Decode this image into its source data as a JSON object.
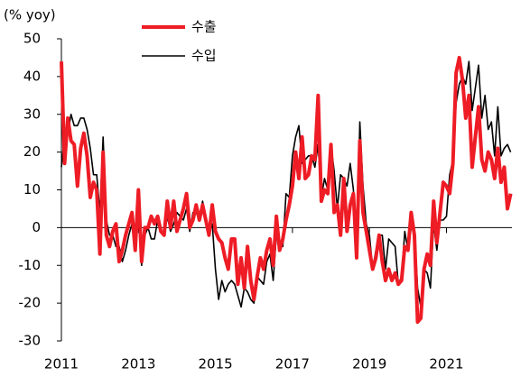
{
  "chart_data": {
    "type": "line",
    "y_label": "(% yoy)",
    "x": [
      2011,
      2011.083,
      2011.167,
      2011.25,
      2011.333,
      2011.417,
      2011.5,
      2011.583,
      2011.667,
      2011.75,
      2011.833,
      2011.917,
      2012,
      2012.083,
      2012.167,
      2012.25,
      2012.333,
      2012.417,
      2012.5,
      2012.583,
      2012.667,
      2012.75,
      2012.833,
      2012.917,
      2013,
      2013.083,
      2013.167,
      2013.25,
      2013.333,
      2013.417,
      2013.5,
      2013.583,
      2013.667,
      2013.75,
      2013.833,
      2013.917,
      2014,
      2014.083,
      2014.167,
      2014.25,
      2014.333,
      2014.417,
      2014.5,
      2014.583,
      2014.667,
      2014.75,
      2014.833,
      2014.917,
      2015,
      2015.083,
      2015.167,
      2015.25,
      2015.333,
      2015.417,
      2015.5,
      2015.583,
      2015.667,
      2015.75,
      2015.833,
      2015.917,
      2016,
      2016.083,
      2016.167,
      2016.25,
      2016.333,
      2016.417,
      2016.5,
      2016.583,
      2016.667,
      2016.75,
      2016.833,
      2016.917,
      2017,
      2017.083,
      2017.167,
      2017.25,
      2017.333,
      2017.417,
      2017.5,
      2017.583,
      2017.667,
      2017.75,
      2017.833,
      2017.917,
      2018,
      2018.083,
      2018.167,
      2018.25,
      2018.333,
      2018.417,
      2018.5,
      2018.583,
      2018.667,
      2018.75,
      2018.833,
      2018.917,
      2019,
      2019.083,
      2019.167,
      2019.25,
      2019.333,
      2019.417,
      2019.5,
      2019.583,
      2019.667,
      2019.75,
      2019.833,
      2019.917,
      2020,
      2020.083,
      2020.167,
      2020.25,
      2020.333,
      2020.417,
      2020.5,
      2020.583,
      2020.667,
      2020.75,
      2020.833,
      2020.917,
      2021,
      2021.083,
      2021.167,
      2021.25,
      2021.333,
      2021.417,
      2021.5,
      2021.583,
      2021.667,
      2021.75,
      2021.833,
      2021.917,
      2022,
      2022.083,
      2022.167,
      2022.25,
      2022.333,
      2022.417,
      2022.5,
      2022.583,
      2022.667
    ],
    "series": [
      {
        "name": "수출",
        "color": "#ee1c25",
        "width": 4,
        "values": [
          44,
          17,
          29,
          23,
          22,
          11,
          21,
          25,
          19,
          8,
          12,
          10,
          -7,
          20,
          -2,
          -5,
          -1,
          1,
          -9,
          -6,
          -2,
          1,
          4,
          -6,
          10,
          -9,
          0,
          0,
          3,
          1,
          3,
          -1,
          -2,
          7,
          0,
          7,
          -1,
          2,
          5,
          9,
          0,
          2,
          6,
          2,
          6,
          2,
          -2,
          6,
          -1,
          -3,
          -4,
          -8,
          -11,
          -3,
          -3,
          -15,
          -8,
          -16,
          -5,
          -14,
          -19,
          -13,
          -8,
          -11,
          -6,
          -3,
          -10,
          3,
          -6,
          -3,
          2,
          6,
          11,
          20,
          13,
          24,
          13,
          14,
          19,
          18,
          35,
          7,
          10,
          9,
          22,
          4,
          6,
          -2,
          13,
          -1,
          6,
          9,
          -8,
          23,
          4,
          -1,
          -6,
          -11,
          -8,
          -2,
          -9,
          -14,
          -11,
          -14,
          -12,
          -15,
          -14,
          -5,
          -6,
          4,
          -2,
          -25,
          -24,
          -11,
          -7,
          -10,
          7,
          -4,
          4,
          12,
          11,
          9,
          17,
          41,
          45,
          39,
          29,
          35,
          16,
          24,
          32,
          18,
          15,
          20,
          18,
          13,
          21,
          12,
          16,
          5,
          9
        ]
      },
      {
        "name": "수입",
        "color": "#000000",
        "width": 1.6,
        "values": [
          16,
          25,
          25,
          30,
          27,
          27,
          29,
          29,
          26,
          21,
          14,
          14,
          4,
          24,
          2,
          -2,
          -2,
          -5,
          -5,
          -9,
          -6,
          -2,
          1,
          -6,
          4,
          -10,
          -2,
          0,
          -3,
          -3,
          2,
          -1,
          -2,
          3,
          -1,
          1,
          4,
          3,
          2,
          5,
          -1,
          4,
          4,
          2,
          7,
          2,
          0,
          1,
          -11,
          -19,
          -14,
          -17,
          -15,
          -14,
          -15,
          -18,
          -21,
          -16,
          -17,
          -19,
          -20,
          -13,
          -14,
          -15,
          -9,
          -7,
          -14,
          -2,
          -5,
          -5,
          9,
          8,
          19,
          24,
          27,
          17,
          18,
          19,
          19,
          16,
          22,
          8,
          13,
          10,
          22,
          15,
          5,
          14,
          13,
          11,
          17,
          10,
          -8,
          28,
          11,
          1,
          -2,
          -11,
          -6,
          -2,
          -2,
          -11,
          -3,
          -4,
          -5,
          -15,
          -13,
          -1,
          -6,
          0,
          -0.3,
          -16,
          -21,
          -11,
          -12,
          -16,
          1,
          -6,
          2,
          2,
          3,
          14,
          18,
          33,
          38,
          40,
          38,
          44,
          31,
          37,
          43,
          29,
          35,
          26,
          28,
          19,
          32,
          19,
          21,
          22,
          20
        ]
      }
    ],
    "xlim": [
      2011,
      2022.7
    ],
    "xticks": [
      2011,
      2013,
      2015,
      2017,
      2019,
      2021
    ],
    "ylim": [
      -30,
      50
    ],
    "yticks": [
      -30,
      -20,
      -10,
      0,
      10,
      20,
      30,
      40,
      50
    ],
    "legend": "top"
  }
}
